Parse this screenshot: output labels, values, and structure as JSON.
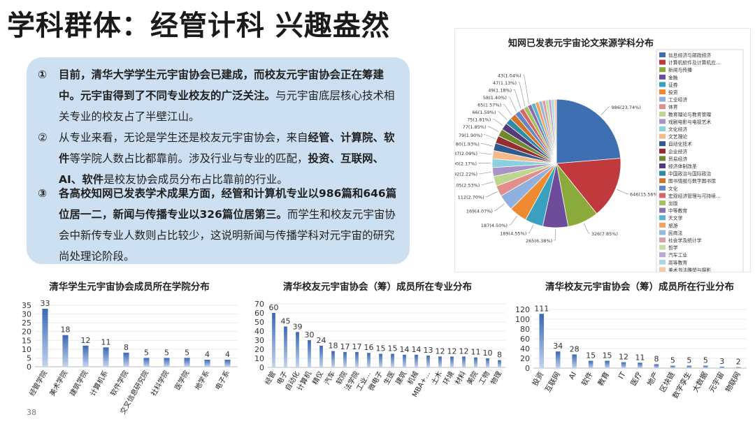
{
  "slide": {
    "title": "学科群体：经管计科 兴趣盎然",
    "page_number": "38",
    "points": [
      {
        "num": "①",
        "segments": [
          {
            "text": "目前，清华大学学生元宇宙协会已建成，而校友元宇宙协会正在筹建中。元宇宙得到了不同专业校友的广泛关注。",
            "bold": true
          },
          {
            "text": "与元宇宙底层核心技术相关专业的校友占了半壁江山。",
            "bold": false
          }
        ]
      },
      {
        "num": "②",
        "segments": [
          {
            "text": "从专业来看，无论是学生还是校友元宇宙协会，来自",
            "bold": false
          },
          {
            "text": "经管、计算院、软件",
            "bold": true
          },
          {
            "text": "等学院人数占比都靠前。涉及行业与专业的匹配，",
            "bold": false
          },
          {
            "text": "投资、互联网、AI、软件",
            "bold": true
          },
          {
            "text": "是校友协会成员分布占比靠前的行业。",
            "bold": false
          }
        ]
      },
      {
        "num": "③",
        "segments": [
          {
            "text": "各高校知网已发表学术成果方面，经管和计算机专业以986篇和646篇位居一二，新闻与传播专业以326篇位居第三。",
            "bold": true
          },
          {
            "text": "而学生和校友元宇宙协会中新传专业人数则占比较少，这说明新闻与传播学科对元宇宙的研究尚处理论阶段。",
            "bold": false
          }
        ]
      }
    ]
  },
  "chart_data": [
    {
      "id": "pie",
      "type": "pie",
      "title": "知网已发表元宇宙论文来源学科分布",
      "legend_position": "right",
      "slices": [
        {
          "name": "信息经济与邮政经济",
          "value": 986,
          "label": "986(23.74%)",
          "color": "#3e6fb0"
        },
        {
          "name": "计算机软件及计算机应...",
          "value": 646,
          "label": "646(15.56%)",
          "color": "#c0393c"
        },
        {
          "name": "新闻与传播",
          "value": 326,
          "label": "326(7.85%)",
          "color": "#8aaa3c"
        },
        {
          "name": "金融",
          "value": 265,
          "label": "265(6.38%)",
          "color": "#6d4d9a"
        },
        {
          "name": "证券",
          "value": 189,
          "label": "189(4.55%)",
          "color": "#3aa0bf"
        },
        {
          "name": "投资",
          "value": 187,
          "label": "187(4.50%)",
          "color": "#ee8a2f"
        },
        {
          "name": "工业经济",
          "value": 169,
          "label": "169(4.07%)",
          "color": "#8fb0dd"
        },
        {
          "name": "体育",
          "value": 112,
          "label": "112(2.70%)",
          "color": "#e08f8d"
        },
        {
          "name": "教育理论与教育管理",
          "value": 105,
          "label": "105(2.53%)",
          "color": "#bcd58f"
        },
        {
          "name": "戏剧电影与电视艺术",
          "value": 92,
          "label": "92(2.22%)",
          "color": "#a895c5"
        },
        {
          "name": "文化经济",
          "value": 90,
          "label": "90(2.17%)",
          "color": "#8ccfe0"
        },
        {
          "name": "文艺理论",
          "value": 87,
          "label": "87(2.09%)",
          "color": "#f3ba8c"
        },
        {
          "name": "自动化技术",
          "value": 80,
          "label": "80(1.93%)",
          "color": "#2f5a8d"
        },
        {
          "name": "企业经济",
          "value": 79,
          "label": "79(1.90%)",
          "color": "#972d2f"
        },
        {
          "name": "贸易经济",
          "value": 77,
          "label": "77(1.85%)",
          "color": "#6e8a2f"
        },
        {
          "name": "经济体制改革",
          "value": 75,
          "label": "75(1.81%)",
          "color": "#553b7c"
        },
        {
          "name": "中国政治与国际政治",
          "value": 66,
          "label": "66(1.59%)",
          "color": "#2f8aa6"
        },
        {
          "name": "图书情报与数字图书馆",
          "value": 65,
          "label": "65(1.57%)",
          "color": "#d0742a"
        },
        {
          "name": "文化",
          "value": 58,
          "label": "58(1.40%)",
          "color": "#6487c4"
        },
        {
          "name": "宏观经济管理与可持续...",
          "value": 49,
          "label": "49(1.18%)",
          "color": "#d46664"
        },
        {
          "name": "出版",
          "value": 47,
          "label": "47(1.13%)",
          "color": "#a5c15e"
        },
        {
          "name": "中等教育",
          "value": 43,
          "label": "43(1.04%)",
          "color": "#8870ae"
        },
        {
          "name": "天文学",
          "value": 42,
          "label": "",
          "color": "#5ab3cf"
        },
        {
          "name": "旅游",
          "value": 38,
          "label": "",
          "color": "#f2a35c"
        },
        {
          "name": "民商法",
          "value": 36,
          "label": "",
          "color": "#9bb6d8"
        },
        {
          "name": "社会学及统计学",
          "value": 34,
          "label": "",
          "color": "#d9a3a1"
        },
        {
          "name": "哲学",
          "value": 32,
          "label": "",
          "color": "#c9dba6"
        },
        {
          "name": "汽车工业",
          "value": 30,
          "label": "",
          "color": "#b9aacd"
        },
        {
          "name": "高等教育",
          "value": 28,
          "label": "",
          "color": "#a9d9e6"
        },
        {
          "name": "美术书法雕塑与摄影",
          "value": 26,
          "label": "",
          "color": "#f5c9a3"
        }
      ]
    },
    {
      "id": "bar1",
      "type": "bar",
      "title": "清华学生元宇宙协会成员所在学院分布",
      "ylim": [
        0,
        35
      ],
      "yticks": [
        0,
        5,
        10,
        15,
        20,
        25,
        30,
        35
      ],
      "categories": [
        "经管学院",
        "美术学院",
        "建筑学院",
        "计算机系",
        "软件学院",
        "交叉信息研究院",
        "社科学院",
        "医学院",
        "地学系",
        "电子系"
      ],
      "values": [
        33,
        18,
        12,
        11,
        8,
        5,
        5,
        5,
        4,
        4
      ]
    },
    {
      "id": "bar2",
      "type": "bar",
      "title": "清华校友元宇宙协会（筹）成员所在专业分布",
      "ylim": [
        0,
        70
      ],
      "yticks": [
        0,
        10,
        20,
        30,
        40,
        50,
        60,
        70
      ],
      "categories": [
        "经管",
        "电子",
        "自动化",
        "计算机",
        "精仪",
        "汽车",
        "软院",
        "法学院",
        "工业…",
        "微电子",
        "生医",
        "建筑",
        "机械",
        "MBA+…",
        "土木",
        "环境",
        "材料",
        "美院",
        "工物",
        "物理"
      ],
      "values": [
        60,
        45,
        39,
        30,
        24,
        18,
        17,
        17,
        16,
        15,
        15,
        14,
        14,
        13,
        12,
        12,
        12,
        11,
        10,
        8
      ]
    },
    {
      "id": "bar3",
      "type": "bar",
      "title": "清华校友元宇宙协会（筹）成员所在行业分布",
      "ylim": [
        0,
        120
      ],
      "yticks": [
        0,
        20,
        40,
        60,
        80,
        100,
        120
      ],
      "categories": [
        "投资",
        "互联网",
        "AI",
        "软件",
        "教育",
        "IT",
        "医疗",
        "地产",
        "区块链",
        "数字孪生",
        "大数据",
        "元宇宙",
        "物联网"
      ],
      "values": [
        111,
        34,
        28,
        15,
        15,
        12,
        11,
        8,
        5,
        5,
        5,
        3,
        2
      ]
    }
  ]
}
